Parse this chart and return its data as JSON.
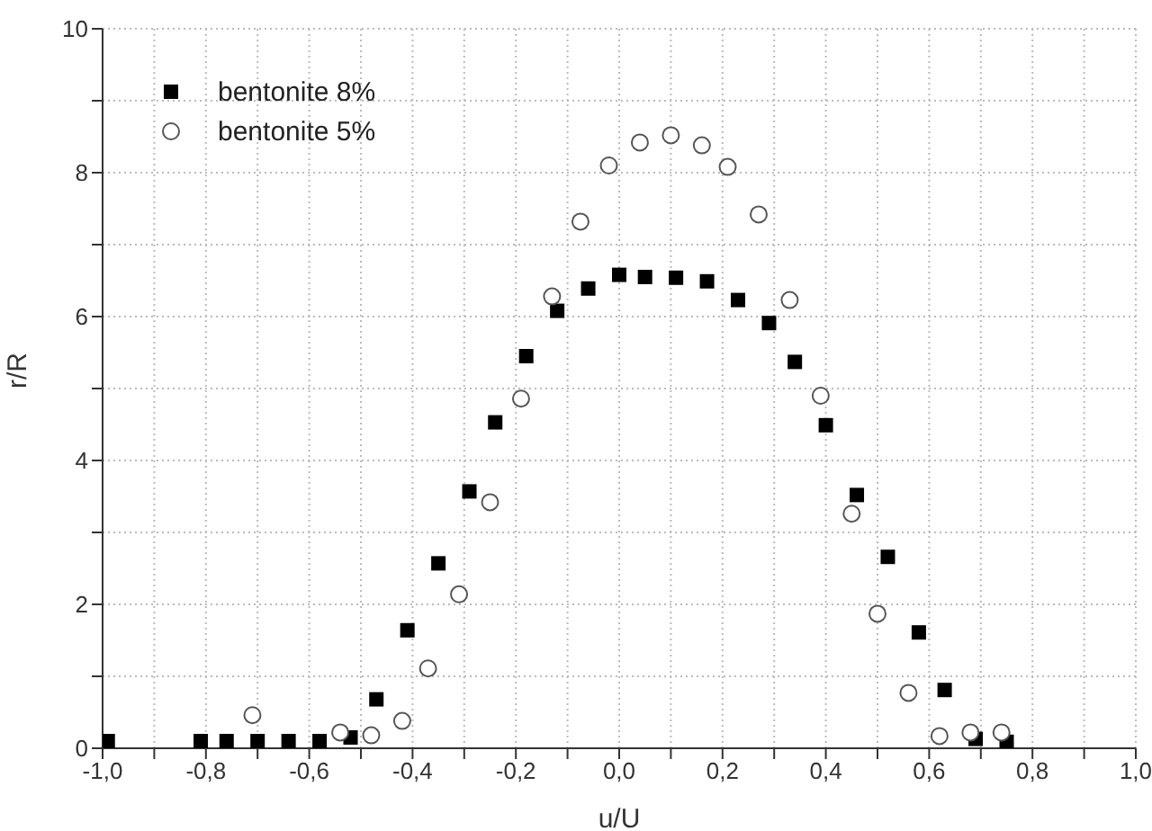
{
  "chart_data": {
    "type": "scatter",
    "xlabel": "u/U",
    "ylabel": "r/R",
    "xlim": [
      -1,
      1
    ],
    "xticks": [
      {
        "value": -1,
        "label": "-1,0"
      },
      {
        "value": -0.9,
        "label": null
      },
      {
        "value": -0.8,
        "label": "-0,8"
      },
      {
        "value": -0.7,
        "label": null
      },
      {
        "value": -0.6,
        "label": "-0,6"
      },
      {
        "value": -0.5,
        "label": null
      },
      {
        "value": -0.4,
        "label": "-0,4"
      },
      {
        "value": -0.3,
        "label": null
      },
      {
        "value": -0.2,
        "label": "-0,2"
      },
      {
        "value": -0.1,
        "label": null
      },
      {
        "value": 0,
        "label": "0,0"
      },
      {
        "value": 0.1,
        "label": null
      },
      {
        "value": 0.2,
        "label": "0,2"
      },
      {
        "value": 0.3,
        "label": null
      },
      {
        "value": 0.4,
        "label": "0,4"
      },
      {
        "value": 0.5,
        "label": null
      },
      {
        "value": 0.6,
        "label": "0,6"
      },
      {
        "value": 0.7,
        "label": null
      },
      {
        "value": 0.8,
        "label": "0,8"
      },
      {
        "value": 0.9,
        "label": null
      },
      {
        "value": 1,
        "label": "1,0"
      }
    ],
    "ylim": [
      0,
      10
    ],
    "yticks": [
      0,
      {
        "value": 1,
        "label": null
      },
      2,
      {
        "value": 3,
        "label": null
      },
      4,
      {
        "value": 5,
        "label": null
      },
      6,
      {
        "value": 7,
        "label": null
      },
      8,
      {
        "value": 9,
        "label": null
      },
      10
    ],
    "grid": true,
    "legend": "top left",
    "series": [
      {
        "name": "bentonite 8%",
        "color": "#000000",
        "marker": "square",
        "x": [
          -0.99,
          -0.81,
          -0.76,
          -0.7,
          -0.64,
          -0.58,
          -0.52,
          -0.47,
          -0.41,
          -0.35,
          -0.29,
          -0.24,
          -0.18,
          -0.12,
          -0.06,
          0.0,
          0.05,
          0.11,
          0.17,
          0.23,
          0.29,
          0.34,
          0.4,
          0.46,
          0.52,
          0.58,
          0.63,
          0.69,
          0.75
        ],
        "values": [
          0.1,
          0.1,
          0.1,
          0.1,
          0.1,
          0.1,
          0.15,
          0.68,
          1.64,
          2.57,
          3.57,
          4.53,
          5.45,
          6.08,
          6.39,
          6.58,
          6.55,
          6.54,
          6.49,
          6.23,
          5.91,
          5.37,
          4.49,
          3.52,
          2.66,
          1.61,
          0.81,
          0.13,
          0.09
        ]
      },
      {
        "name": "bentonite 5%",
        "color": "#555555",
        "marker": "circle",
        "x": [
          -0.71,
          -0.54,
          -0.48,
          -0.42,
          -0.37,
          -0.31,
          -0.25,
          -0.19,
          -0.13,
          -0.075,
          -0.02,
          0.04,
          0.1,
          0.16,
          0.21,
          0.27,
          0.33,
          0.39,
          0.45,
          0.5,
          0.56,
          0.62,
          0.68,
          0.74
        ],
        "values": [
          0.46,
          0.22,
          0.18,
          0.38,
          1.11,
          2.14,
          3.42,
          4.86,
          6.28,
          7.32,
          8.1,
          8.42,
          8.52,
          8.38,
          8.08,
          7.42,
          6.23,
          4.9,
          3.26,
          1.87,
          0.77,
          0.17,
          0.22,
          0.22
        ]
      }
    ]
  }
}
